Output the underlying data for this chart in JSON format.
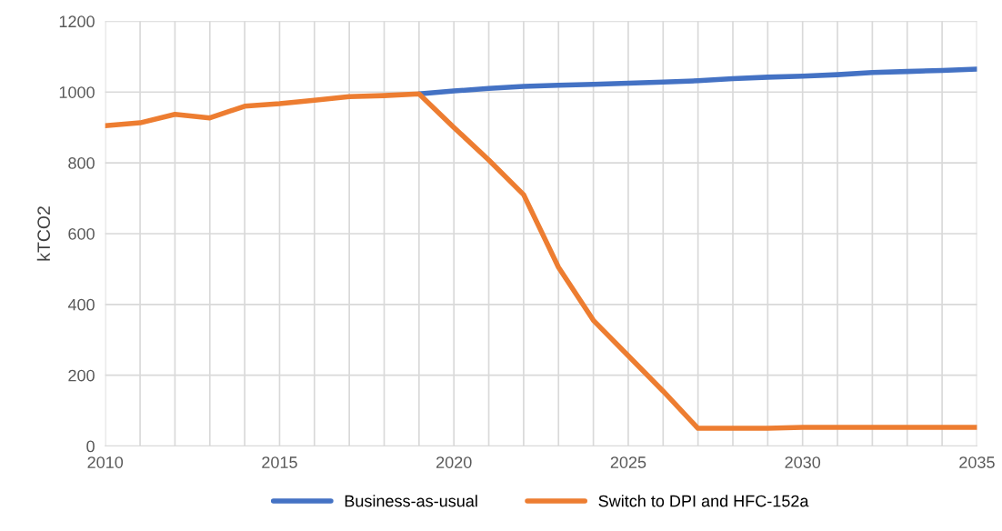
{
  "chart_data": {
    "type": "line",
    "ylabel": "kTCO2",
    "x": [
      2010,
      2011,
      2012,
      2013,
      2014,
      2015,
      2016,
      2017,
      2018,
      2019,
      2020,
      2021,
      2022,
      2023,
      2024,
      2025,
      2026,
      2027,
      2028,
      2029,
      2030,
      2031,
      2032,
      2033,
      2034,
      2035
    ],
    "series": [
      {
        "name": "Business-as-usual",
        "color": "#4472c4",
        "values": [
          null,
          null,
          null,
          null,
          null,
          null,
          null,
          null,
          null,
          995,
          1003,
          1010,
          1016,
          1019,
          1022,
          1025,
          1028,
          1032,
          1038,
          1042,
          1045,
          1049,
          1055,
          1058,
          1061,
          1065
        ]
      },
      {
        "name": "Switch to DPI and HFC-152a",
        "color": "#ed7d31",
        "values": [
          905,
          913,
          937,
          927,
          960,
          967,
          977,
          987,
          990,
          995,
          900,
          808,
          710,
          505,
          355,
          255,
          155,
          50,
          50,
          50,
          53,
          53,
          53,
          53,
          53,
          53
        ]
      }
    ],
    "xlim": [
      2010,
      2035
    ],
    "xticks": [
      2010,
      {
        "value": 2011,
        "label": null
      },
      {
        "value": 2012,
        "label": null
      },
      {
        "value": 2013,
        "label": null
      },
      {
        "value": 2014,
        "label": null
      },
      2015,
      {
        "value": 2016,
        "label": null
      },
      {
        "value": 2017,
        "label": null
      },
      {
        "value": 2018,
        "label": null
      },
      {
        "value": 2019,
        "label": null
      },
      2020,
      {
        "value": 2021,
        "label": null
      },
      {
        "value": 2022,
        "label": null
      },
      {
        "value": 2023,
        "label": null
      },
      {
        "value": 2024,
        "label": null
      },
      2025,
      {
        "value": 2026,
        "label": null
      },
      {
        "value": 2027,
        "label": null
      },
      {
        "value": 2028,
        "label": null
      },
      {
        "value": 2029,
        "label": null
      },
      2030,
      {
        "value": 2031,
        "label": null
      },
      {
        "value": 2032,
        "label": null
      },
      {
        "value": 2033,
        "label": null
      },
      {
        "value": 2034,
        "label": null
      },
      2035
    ],
    "ylim": [
      0,
      1200
    ],
    "yticks": [
      0,
      200,
      400,
      600,
      800,
      1000,
      1200
    ],
    "grid": true,
    "legend": "bottom",
    "marker": "none",
    "line_style": "solid"
  }
}
